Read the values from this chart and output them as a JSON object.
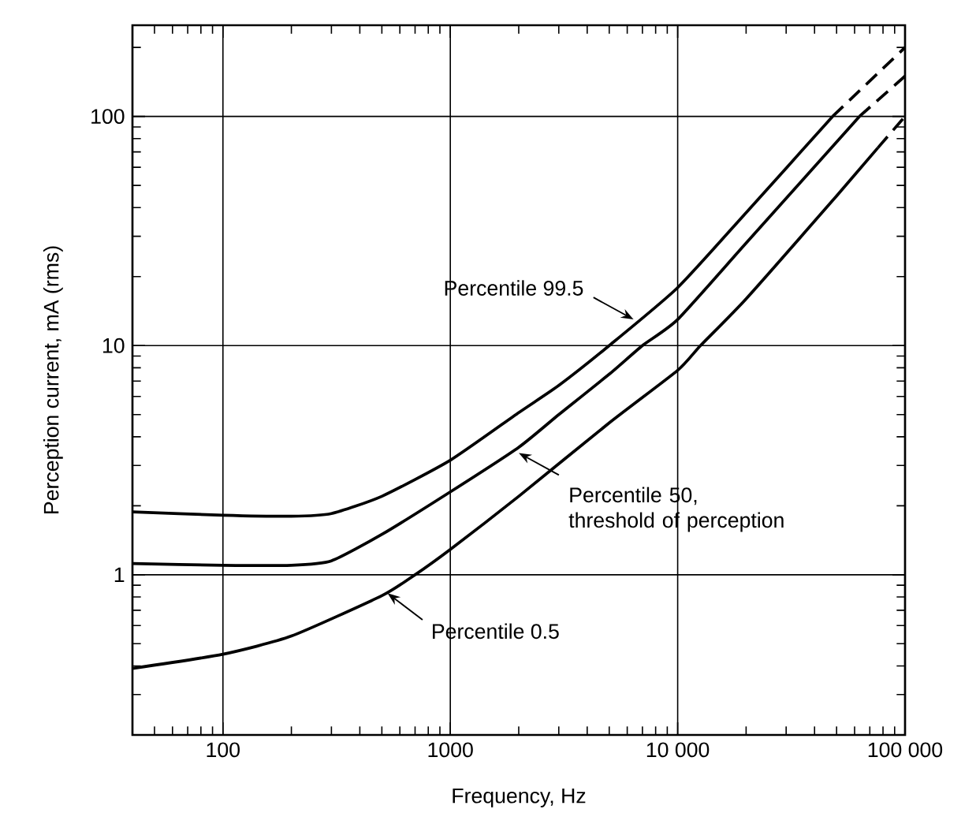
{
  "chart_data": {
    "type": "line",
    "xlabel": "Frequency, Hz",
    "ylabel": "Perception current, mA (rms)",
    "log": "xy",
    "grid": true,
    "marker": "none",
    "line_style": "solid",
    "xlim": [
      40,
      100000
    ],
    "ylim": [
      0.2,
      250
    ],
    "xticks": [
      100,
      1000,
      {
        "value": 10000,
        "label": "10 000"
      },
      {
        "value": 100000,
        "label": "100 000"
      }
    ],
    "yticks": [
      1,
      10,
      100
    ],
    "series": [
      {
        "color": "#000000",
        "x": [
          40,
          100,
          200,
          300,
          500,
          1000,
          2000,
          3000,
          5000,
          10000,
          20000,
          48000
        ],
        "values": [
          1.88,
          1.82,
          1.8,
          1.85,
          2.2,
          3.16,
          5.1,
          6.7,
          10,
          17.9,
          38,
          100
        ]
      },
      {
        "color": "#000000",
        "line_style": "dashed",
        "x": [
          48000,
          100000
        ],
        "values": [
          100,
          200
        ]
      },
      {
        "color": "#000000",
        "x": [
          40,
          100,
          200,
          300,
          500,
          1000,
          2000,
          3000,
          5000,
          7000,
          10000,
          20000,
          63000
        ],
        "values": [
          1.12,
          1.1,
          1.1,
          1.15,
          1.5,
          2.3,
          3.6,
          5,
          7.5,
          10,
          13,
          28,
          100
        ]
      },
      {
        "color": "#000000",
        "line_style": "dashed",
        "x": [
          63000,
          100000
        ],
        "values": [
          100,
          150
        ]
      },
      {
        "color": "#000000",
        "x": [
          40,
          100,
          200,
          500,
          700,
          1000,
          2000,
          5000,
          10000,
          12600,
          20000,
          50000,
          76000
        ],
        "values": [
          0.39,
          0.45,
          0.54,
          0.81,
          1,
          1.29,
          2.2,
          4.6,
          7.8,
          10,
          16,
          45,
          73
        ]
      },
      {
        "color": "#000000",
        "line_style": "dashed",
        "x": [
          76000,
          100000
        ],
        "values": [
          73,
          100
        ]
      }
    ],
    "annotations": [
      {
        "text": "Percentile 99.5",
        "x": 6400,
        "y": 13
      },
      {
        "text": "Percentile 50, threshold of perception",
        "x": 2000,
        "y": 3.4
      },
      {
        "text": "Percentile 0.5",
        "x": 530,
        "y": 0.83
      }
    ]
  }
}
